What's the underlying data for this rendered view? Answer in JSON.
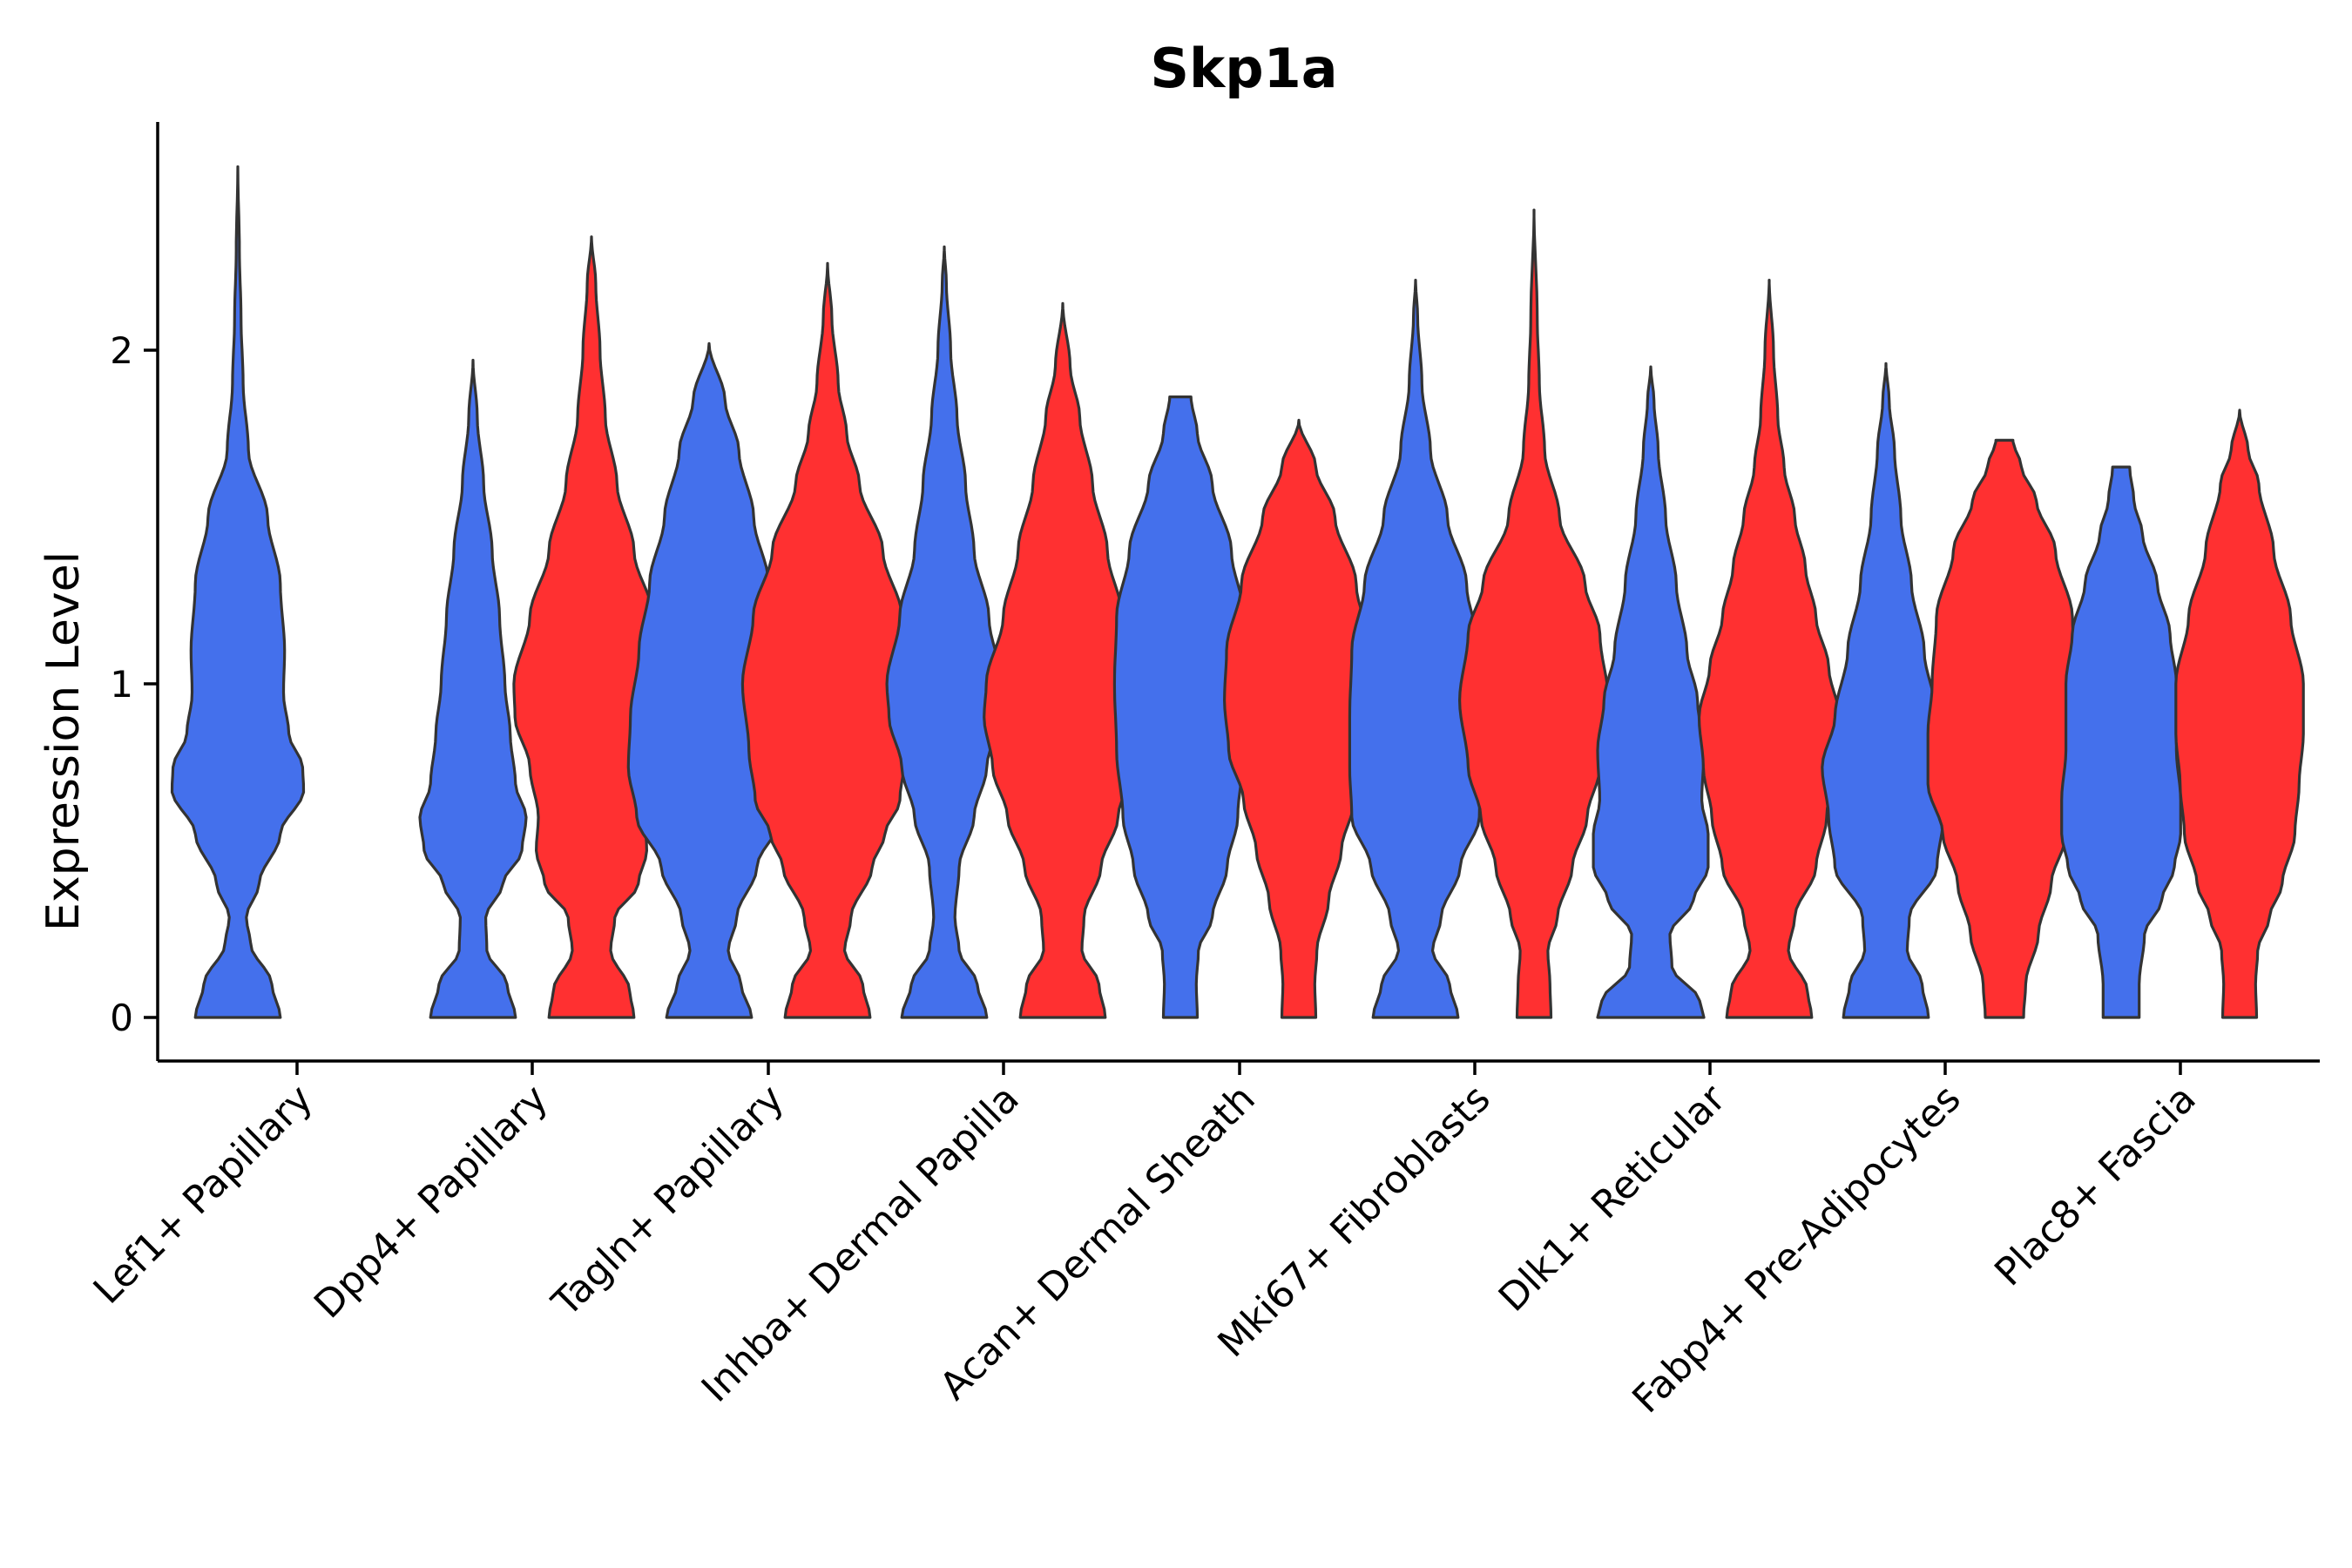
{
  "chart_data": {
    "type": "violin",
    "title": "Skp1a",
    "xlabel": "",
    "ylabel": "Expression Level",
    "ylim": [
      -0.13,
      2.68
    ],
    "yticks": [
      0,
      1,
      2
    ],
    "grid": false,
    "legend": "none",
    "colors": {
      "group1": "#4470EC",
      "group2": "#FF3031",
      "outline": "#333333"
    },
    "categories": [
      "Lef1+ Papillary",
      "Dpp4+ Papillary",
      "Tagln+ Papillary",
      "Inhba+ Dermal Papilla",
      "Acan+ Dermal Sheath",
      "Mki67+ Fibroblasts",
      "Dlk1+ Reticular",
      "Fabp4+ Pre-Adipocytes",
      "Plac8+ Fascia"
    ],
    "violins": [
      {
        "category": "Lef1+ Papillary",
        "group": 1,
        "color": "#4470EC",
        "max": 2.55,
        "profile": [
          [
            0,
            0.4
          ],
          [
            0.1,
            0.32
          ],
          [
            0.22,
            0.12
          ],
          [
            0.3,
            0.08
          ],
          [
            0.4,
            0.2
          ],
          [
            0.55,
            0.4
          ],
          [
            0.68,
            0.62
          ],
          [
            0.75,
            0.61
          ],
          [
            0.85,
            0.48
          ],
          [
            0.97,
            0.43
          ],
          [
            1.1,
            0.44
          ],
          [
            1.3,
            0.4
          ],
          [
            1.5,
            0.28
          ],
          [
            1.7,
            0.1
          ],
          [
            1.9,
            0.05
          ],
          [
            2.1,
            0.03
          ],
          [
            2.3,
            0.015
          ],
          [
            2.55,
            0.0
          ]
        ]
      },
      {
        "category": "Dpp4+ Papillary",
        "group": 1,
        "color": "#4470EC",
        "max": 1.97,
        "profile": [
          [
            0,
            0.4
          ],
          [
            0.1,
            0.32
          ],
          [
            0.2,
            0.13
          ],
          [
            0.3,
            0.12
          ],
          [
            0.4,
            0.28
          ],
          [
            0.5,
            0.46
          ],
          [
            0.6,
            0.5
          ],
          [
            0.7,
            0.4
          ],
          [
            0.85,
            0.35
          ],
          [
            1.0,
            0.3
          ],
          [
            1.2,
            0.25
          ],
          [
            1.4,
            0.18
          ],
          [
            1.6,
            0.1
          ],
          [
            1.8,
            0.04
          ],
          [
            1.97,
            0.0
          ]
        ]
      },
      {
        "category": "Dpp4+ Papillary",
        "group": 2,
        "color": "#FF3031",
        "max": 2.34,
        "profile": [
          [
            0,
            0.4
          ],
          [
            0.08,
            0.36
          ],
          [
            0.2,
            0.18
          ],
          [
            0.3,
            0.22
          ],
          [
            0.4,
            0.44
          ],
          [
            0.5,
            0.52
          ],
          [
            0.6,
            0.5
          ],
          [
            0.75,
            0.58
          ],
          [
            0.9,
            0.72
          ],
          [
            1.0,
            0.73
          ],
          [
            1.2,
            0.58
          ],
          [
            1.4,
            0.4
          ],
          [
            1.6,
            0.24
          ],
          [
            1.8,
            0.13
          ],
          [
            2.0,
            0.08
          ],
          [
            2.2,
            0.04
          ],
          [
            2.34,
            0.0
          ]
        ]
      },
      {
        "category": "Tagln+ Papillary",
        "group": 1,
        "color": "#4470EC",
        "max": 2.02,
        "profile": [
          [
            0,
            0.4
          ],
          [
            0.1,
            0.3
          ],
          [
            0.2,
            0.18
          ],
          [
            0.3,
            0.26
          ],
          [
            0.45,
            0.45
          ],
          [
            0.6,
            0.68
          ],
          [
            0.75,
            0.76
          ],
          [
            0.9,
            0.74
          ],
          [
            1.1,
            0.66
          ],
          [
            1.3,
            0.56
          ],
          [
            1.5,
            0.42
          ],
          [
            1.7,
            0.28
          ],
          [
            1.85,
            0.15
          ],
          [
            2.02,
            0.0
          ]
        ]
      },
      {
        "category": "Tagln+ Papillary",
        "group": 2,
        "color": "#FF3031",
        "max": 2.26,
        "profile": [
          [
            0,
            0.4
          ],
          [
            0.1,
            0.33
          ],
          [
            0.2,
            0.16
          ],
          [
            0.3,
            0.22
          ],
          [
            0.45,
            0.42
          ],
          [
            0.55,
            0.54
          ],
          [
            0.65,
            0.68
          ],
          [
            0.8,
            0.74
          ],
          [
            1.0,
            0.8
          ],
          [
            1.2,
            0.7
          ],
          [
            1.4,
            0.52
          ],
          [
            1.6,
            0.3
          ],
          [
            1.75,
            0.18
          ],
          [
            1.9,
            0.1
          ],
          [
            2.1,
            0.04
          ],
          [
            2.26,
            0.0
          ]
        ]
      },
      {
        "category": "Inhba+ Dermal Papilla",
        "group": 1,
        "color": "#4470EC",
        "max": 2.31,
        "profile": [
          [
            0,
            0.4
          ],
          [
            0.1,
            0.31
          ],
          [
            0.2,
            0.14
          ],
          [
            0.3,
            0.1
          ],
          [
            0.45,
            0.14
          ],
          [
            0.6,
            0.28
          ],
          [
            0.75,
            0.4
          ],
          [
            0.9,
            0.52
          ],
          [
            1.0,
            0.54
          ],
          [
            1.2,
            0.42
          ],
          [
            1.4,
            0.28
          ],
          [
            1.6,
            0.2
          ],
          [
            1.8,
            0.12
          ],
          [
            2.0,
            0.06
          ],
          [
            2.2,
            0.02
          ],
          [
            2.31,
            0.0
          ]
        ]
      },
      {
        "category": "Inhba+ Dermal Papilla",
        "group": 2,
        "color": "#FF3031",
        "max": 2.14,
        "profile": [
          [
            0,
            0.4
          ],
          [
            0.1,
            0.34
          ],
          [
            0.2,
            0.18
          ],
          [
            0.3,
            0.2
          ],
          [
            0.45,
            0.36
          ],
          [
            0.6,
            0.52
          ],
          [
            0.75,
            0.66
          ],
          [
            0.9,
            0.74
          ],
          [
            1.0,
            0.72
          ],
          [
            1.2,
            0.56
          ],
          [
            1.4,
            0.42
          ],
          [
            1.6,
            0.28
          ],
          [
            1.8,
            0.16
          ],
          [
            1.95,
            0.07
          ],
          [
            2.14,
            0.0
          ]
        ]
      },
      {
        "category": "Acan+ Dermal Sheath",
        "group": 1,
        "color": "#4470EC",
        "max": 1.86,
        "profile": [
          [
            0,
            0.16
          ],
          [
            0.1,
            0.15
          ],
          [
            0.2,
            0.17
          ],
          [
            0.3,
            0.3
          ],
          [
            0.45,
            0.44
          ],
          [
            0.6,
            0.54
          ],
          [
            0.8,
            0.6
          ],
          [
            1.0,
            0.62
          ],
          [
            1.2,
            0.6
          ],
          [
            1.4,
            0.48
          ],
          [
            1.6,
            0.3
          ],
          [
            1.75,
            0.16
          ],
          [
            1.86,
            0.1
          ]
        ]
      },
      {
        "category": "Acan+ Dermal Sheath",
        "group": 2,
        "color": "#FF3031",
        "max": 1.79,
        "profile": [
          [
            0,
            0.16
          ],
          [
            0.1,
            0.15
          ],
          [
            0.2,
            0.17
          ],
          [
            0.35,
            0.28
          ],
          [
            0.5,
            0.4
          ],
          [
            0.65,
            0.52
          ],
          [
            0.8,
            0.66
          ],
          [
            0.95,
            0.7
          ],
          [
            1.1,
            0.68
          ],
          [
            1.3,
            0.54
          ],
          [
            1.5,
            0.34
          ],
          [
            1.65,
            0.16
          ],
          [
            1.79,
            0.0
          ]
        ]
      },
      {
        "category": "Mki67+ Fibroblasts",
        "group": 1,
        "color": "#4470EC",
        "max": 2.21,
        "profile": [
          [
            0,
            0.4
          ],
          [
            0.1,
            0.32
          ],
          [
            0.2,
            0.16
          ],
          [
            0.3,
            0.24
          ],
          [
            0.45,
            0.42
          ],
          [
            0.6,
            0.6
          ],
          [
            0.75,
            0.62
          ],
          [
            0.9,
            0.62
          ],
          [
            1.1,
            0.6
          ],
          [
            1.3,
            0.48
          ],
          [
            1.5,
            0.3
          ],
          [
            1.7,
            0.14
          ],
          [
            1.9,
            0.06
          ],
          [
            2.1,
            0.02
          ],
          [
            2.21,
            0.0
          ]
        ]
      },
      {
        "category": "Mki67+ Fibroblasts",
        "group": 2,
        "color": "#FF3031",
        "max": 2.42,
        "profile": [
          [
            0,
            0.16
          ],
          [
            0.1,
            0.15
          ],
          [
            0.2,
            0.13
          ],
          [
            0.3,
            0.22
          ],
          [
            0.45,
            0.36
          ],
          [
            0.6,
            0.5
          ],
          [
            0.75,
            0.62
          ],
          [
            0.95,
            0.7
          ],
          [
            1.15,
            0.62
          ],
          [
            1.3,
            0.48
          ],
          [
            1.5,
            0.24
          ],
          [
            1.7,
            0.1
          ],
          [
            1.9,
            0.05
          ],
          [
            2.1,
            0.03
          ],
          [
            2.42,
            0.0
          ]
        ]
      },
      {
        "category": "Dlk1+ Reticular",
        "group": 1,
        "color": "#4470EC",
        "max": 1.95,
        "profile": [
          [
            0,
            0.5
          ],
          [
            0.05,
            0.46
          ],
          [
            0.15,
            0.2
          ],
          [
            0.25,
            0.18
          ],
          [
            0.35,
            0.4
          ],
          [
            0.45,
            0.54
          ],
          [
            0.55,
            0.54
          ],
          [
            0.65,
            0.48
          ],
          [
            0.8,
            0.5
          ],
          [
            0.95,
            0.44
          ],
          [
            1.1,
            0.34
          ],
          [
            1.3,
            0.24
          ],
          [
            1.5,
            0.14
          ],
          [
            1.7,
            0.07
          ],
          [
            1.85,
            0.03
          ],
          [
            1.95,
            0.0
          ]
        ]
      },
      {
        "category": "Dlk1+ Reticular",
        "group": 2,
        "color": "#FF3031",
        "max": 2.21,
        "profile": [
          [
            0,
            0.4
          ],
          [
            0.08,
            0.36
          ],
          [
            0.2,
            0.18
          ],
          [
            0.3,
            0.24
          ],
          [
            0.45,
            0.44
          ],
          [
            0.6,
            0.54
          ],
          [
            0.75,
            0.62
          ],
          [
            0.9,
            0.66
          ],
          [
            1.05,
            0.56
          ],
          [
            1.2,
            0.44
          ],
          [
            1.35,
            0.34
          ],
          [
            1.5,
            0.24
          ],
          [
            1.65,
            0.14
          ],
          [
            1.8,
            0.08
          ],
          [
            2.0,
            0.04
          ],
          [
            2.21,
            0.0
          ]
        ]
      },
      {
        "category": "Fabp4+ Pre-Adipocytes",
        "group": 1,
        "color": "#4470EC",
        "max": 1.96,
        "profile": [
          [
            0,
            0.4
          ],
          [
            0.1,
            0.34
          ],
          [
            0.2,
            0.2
          ],
          [
            0.3,
            0.22
          ],
          [
            0.45,
            0.48
          ],
          [
            0.6,
            0.54
          ],
          [
            0.75,
            0.6
          ],
          [
            0.9,
            0.48
          ],
          [
            1.1,
            0.36
          ],
          [
            1.3,
            0.24
          ],
          [
            1.5,
            0.14
          ],
          [
            1.7,
            0.08
          ],
          [
            1.85,
            0.03
          ],
          [
            1.96,
            0.0
          ]
        ]
      },
      {
        "category": "Fabp4+ Pre-Adipocytes",
        "group": 2,
        "color": "#FF3031",
        "max": 1.73,
        "profile": [
          [
            0,
            0.18
          ],
          [
            0.1,
            0.2
          ],
          [
            0.25,
            0.32
          ],
          [
            0.4,
            0.44
          ],
          [
            0.55,
            0.58
          ],
          [
            0.7,
            0.72
          ],
          [
            0.85,
            0.72
          ],
          [
            1.0,
            0.68
          ],
          [
            1.2,
            0.64
          ],
          [
            1.4,
            0.48
          ],
          [
            1.55,
            0.3
          ],
          [
            1.65,
            0.16
          ],
          [
            1.73,
            0.08
          ]
        ]
      },
      {
        "category": "Plac8+ Fascia",
        "group": 1,
        "color": "#4470EC",
        "max": 1.65,
        "profile": [
          [
            0,
            0.17
          ],
          [
            0.1,
            0.17
          ],
          [
            0.25,
            0.22
          ],
          [
            0.35,
            0.38
          ],
          [
            0.45,
            0.5
          ],
          [
            0.55,
            0.56
          ],
          [
            0.65,
            0.56
          ],
          [
            0.8,
            0.52
          ],
          [
            1.0,
            0.52
          ],
          [
            1.15,
            0.46
          ],
          [
            1.3,
            0.34
          ],
          [
            1.45,
            0.2
          ],
          [
            1.55,
            0.12
          ],
          [
            1.65,
            0.08
          ]
        ]
      },
      {
        "category": "Plac8+ Fascia",
        "group": 2,
        "color": "#FF3031",
        "max": 1.82,
        "profile": [
          [
            0,
            0.16
          ],
          [
            0.1,
            0.15
          ],
          [
            0.2,
            0.17
          ],
          [
            0.3,
            0.28
          ],
          [
            0.4,
            0.4
          ],
          [
            0.55,
            0.52
          ],
          [
            0.7,
            0.56
          ],
          [
            0.85,
            0.6
          ],
          [
            1.0,
            0.6
          ],
          [
            1.2,
            0.48
          ],
          [
            1.4,
            0.32
          ],
          [
            1.6,
            0.18
          ],
          [
            1.7,
            0.08
          ],
          [
            1.82,
            0.0
          ]
        ]
      }
    ]
  }
}
